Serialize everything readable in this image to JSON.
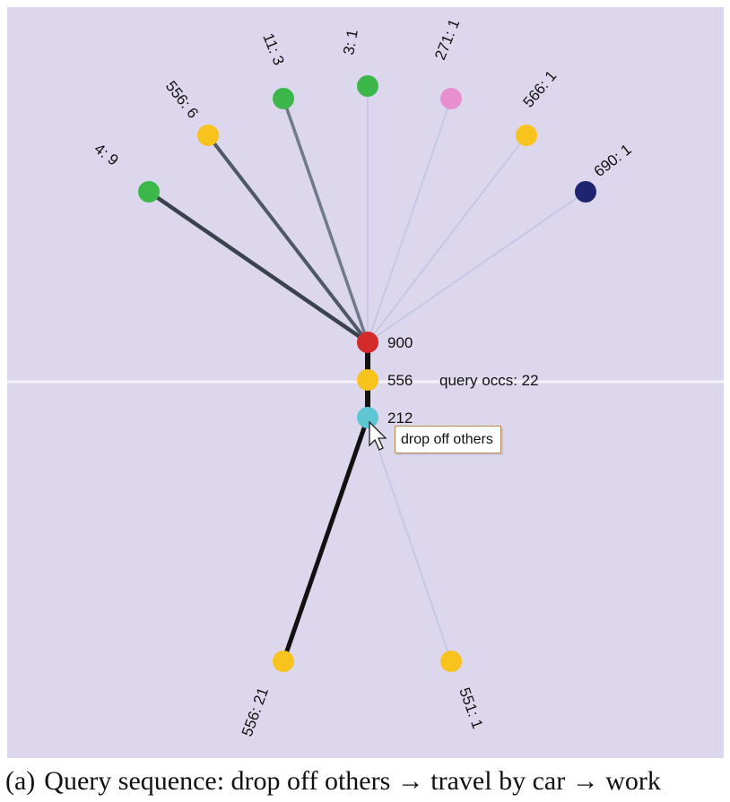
{
  "diagram": {
    "colors": {
      "background": "#dcd7ec",
      "green": "#3cb84a",
      "yellow": "#f7c31c",
      "pink": "#e88fd0",
      "navy": "#1f2470",
      "red": "#d42a2a",
      "cyan": "#5fc7d4"
    },
    "center_nodes": [
      {
        "id": "900",
        "label": "900",
        "color": "red"
      },
      {
        "id": "556",
        "label": "556",
        "color": "yellow",
        "extra": "query occs: 22"
      },
      {
        "id": "212",
        "label": "212",
        "color": "cyan"
      }
    ],
    "upper_branches": [
      {
        "label": "4: 9",
        "color": "green",
        "count": 9
      },
      {
        "label": "556: 6",
        "color": "yellow",
        "count": 6
      },
      {
        "label": "11: 3",
        "color": "green",
        "count": 3
      },
      {
        "label": "3: 1",
        "color": "green",
        "count": 1
      },
      {
        "label": "271: 1",
        "color": "pink",
        "count": 1
      },
      {
        "label": "566: 1",
        "color": "yellow",
        "count": 1
      },
      {
        "label": "690: 1",
        "color": "navy",
        "count": 1
      }
    ],
    "lower_branches": [
      {
        "label": "556: 21",
        "color": "yellow",
        "count": 21
      },
      {
        "label": "551: 1",
        "color": "yellow",
        "count": 1
      }
    ],
    "tooltip": "drop off others"
  },
  "caption": {
    "tag": "(a)",
    "text": "Query sequence: drop off others → travel by car → work"
  }
}
